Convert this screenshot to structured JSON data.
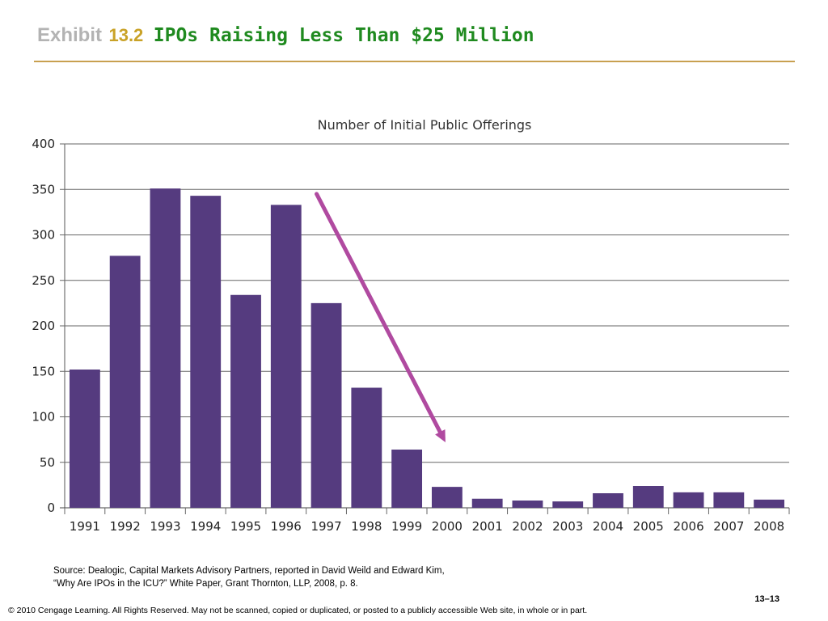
{
  "header": {
    "exhibit_word": "Exhibit",
    "exhibit_number": "13.2",
    "title": "IPOs Raising Less Than $25 Million"
  },
  "chart_data": {
    "type": "bar",
    "title": "Number of Initial Public Offerings",
    "categories": [
      "1991",
      "1992",
      "1993",
      "1994",
      "1995",
      "1996",
      "1997",
      "1998",
      "1999",
      "2000",
      "2001",
      "2002",
      "2003",
      "2004",
      "2005",
      "2006",
      "2007",
      "2008"
    ],
    "values": [
      152,
      277,
      351,
      343,
      234,
      333,
      225,
      132,
      64,
      23,
      10,
      8,
      7,
      16,
      24,
      17,
      17,
      9
    ],
    "ylim": [
      0,
      400
    ],
    "yticks": [
      0,
      50,
      100,
      150,
      200,
      250,
      300,
      350,
      400
    ],
    "grid": true,
    "bar_color": "#553b7f",
    "annotation": {
      "type": "arrow",
      "color": "#b04aa0",
      "from": {
        "x": "1997",
        "y": 345
      },
      "to": {
        "x": "2000",
        "y": 72
      }
    }
  },
  "footer": {
    "source_line1": "Source: Dealogic, Capital Markets Advisory Partners, reported in David Weild and Edward Kim,",
    "source_line2": "“Why Are IPOs in the ICU?” White Paper, Grant Thornton, LLP, 2008, p. 8.",
    "page_number": "13–13",
    "copyright": "© 2010 Cengage Learning. All Rights Reserved. May not be scanned, copied or duplicated, or posted to a publicly accessible Web site, in whole or in part."
  }
}
